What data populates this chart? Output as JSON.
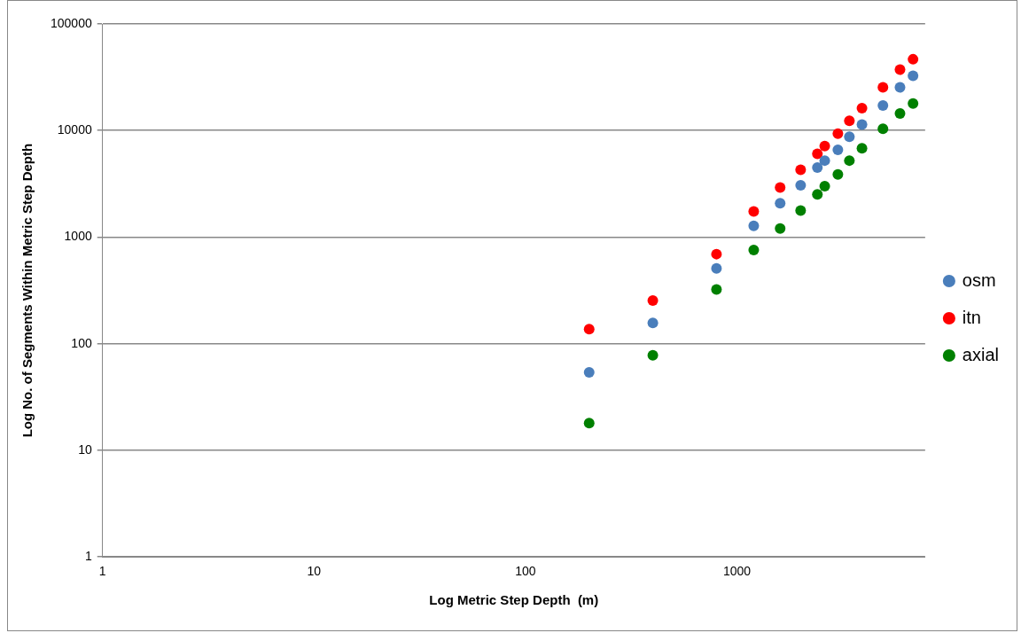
{
  "chart_data": {
    "type": "scatter",
    "xlabel": "Log Metric Step Depth  (m)",
    "ylabel": "Log No. of Segments Within Metric Step Depth",
    "x": [
      200,
      400,
      800,
      1200,
      1600,
      2000,
      2400,
      2600,
      3000,
      3400,
      3900,
      4900,
      5900,
      6800
    ],
    "series": [
      {
        "name": "osm",
        "color": "#4a7ebb",
        "values": [
          54,
          157,
          508,
          1274,
          2083,
          3069,
          4487,
          5226,
          6590,
          8730,
          11400,
          17200,
          25400,
          32650
        ]
      },
      {
        "name": "itn",
        "color": "#ff0000",
        "values": [
          137,
          254,
          693,
          1740,
          2925,
          4275,
          6050,
          7150,
          9330,
          12340,
          16230,
          25470,
          37330,
          46600
        ]
      },
      {
        "name": "axial",
        "color": "#008000",
        "values": [
          18,
          78,
          323,
          757,
          1207,
          1774,
          2513,
          3008,
          3870,
          5226,
          6820,
          10380,
          14480,
          17900
        ]
      }
    ],
    "log": "xy",
    "xlim": [
      1,
      7760
    ],
    "xticks": [
      1,
      10,
      100,
      1000
    ],
    "ylim": [
      1,
      100000
    ],
    "yticks": [
      1,
      10,
      100,
      1000,
      10000,
      100000
    ],
    "grid": "y",
    "legend": "right",
    "marker": "circle"
  }
}
